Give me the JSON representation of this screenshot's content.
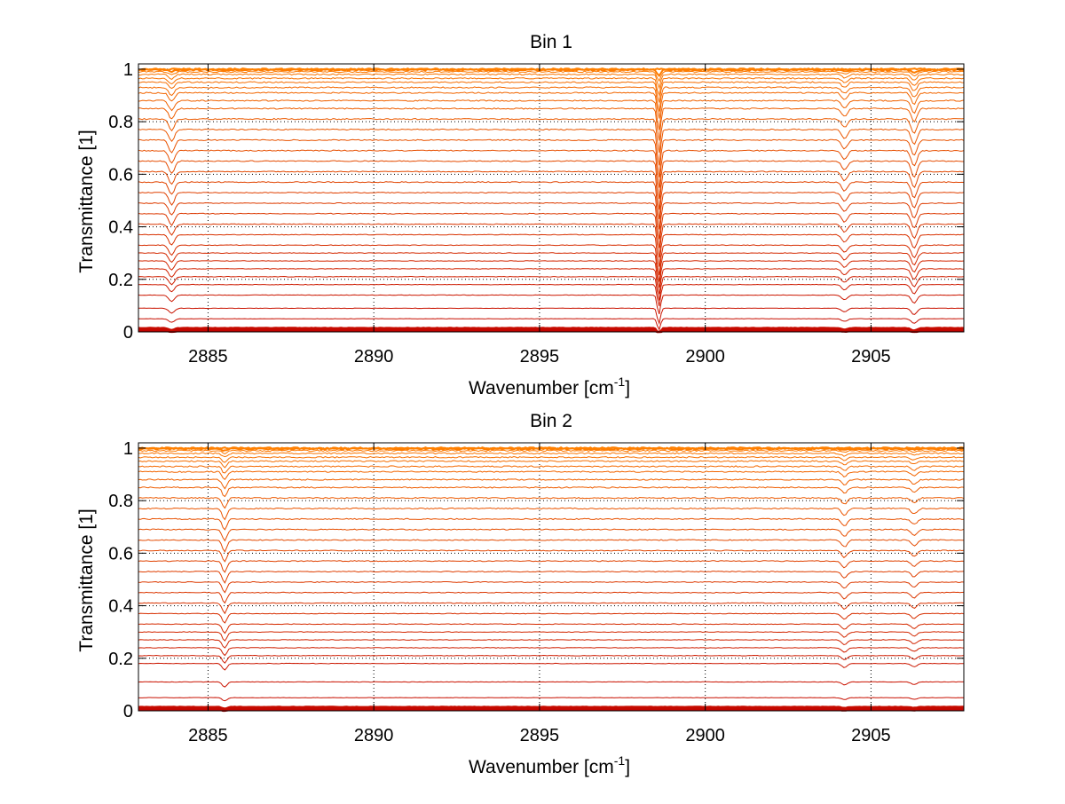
{
  "chart_data": [
    {
      "type": "line",
      "title": "Bin 1",
      "xlabel_main": "Wavenumber [cm",
      "xlabel_sup": "-1",
      "xlabel_end": "]",
      "ylabel": "Transmittance [1]",
      "xlim": [
        2882.9,
        2907.8
      ],
      "ylim": [
        0,
        1.02
      ],
      "xticks": [
        2885,
        2890,
        2895,
        2900,
        2905
      ],
      "xtick_labels": [
        "2885",
        "2890",
        "2895",
        "2900",
        "2905"
      ],
      "yticks": [
        0,
        0.2,
        0.4,
        0.6,
        0.8,
        1
      ],
      "ytick_labels": [
        "0",
        "0.2",
        "0.4",
        "0.6",
        "0.8",
        "1"
      ],
      "grid": "dotted",
      "color_low": "#c00000",
      "color_high": "#ff8000",
      "absorption_lines": [
        {
          "x": 2883.9,
          "width": 0.12,
          "strength": 0.055
        },
        {
          "x": 2898.6,
          "width": 0.07,
          "strength": 0.17
        },
        {
          "x": 2904.2,
          "width": 0.12,
          "strength": 0.04
        },
        {
          "x": 2906.3,
          "width": 0.12,
          "strength": 0.07
        }
      ],
      "series_levels": [
        0.003,
        0.006,
        0.01,
        0.015,
        0.05,
        0.09,
        0.14,
        0.18,
        0.21,
        0.24,
        0.27,
        0.3,
        0.33,
        0.37,
        0.41,
        0.45,
        0.49,
        0.53,
        0.57,
        0.61,
        0.65,
        0.69,
        0.73,
        0.77,
        0.81,
        0.85,
        0.88,
        0.91,
        0.93,
        0.95,
        0.965,
        0.98,
        0.99,
        0.997,
        1.0
      ]
    },
    {
      "type": "line",
      "title": "Bin 2",
      "xlabel_main": "Wavenumber [cm",
      "xlabel_sup": "-1",
      "xlabel_end": "]",
      "ylabel": "Transmittance [1]",
      "xlim": [
        2882.9,
        2907.8
      ],
      "ylim": [
        0,
        1.02
      ],
      "xticks": [
        2885,
        2890,
        2895,
        2900,
        2905
      ],
      "xtick_labels": [
        "2885",
        "2890",
        "2895",
        "2900",
        "2905"
      ],
      "yticks": [
        0,
        0.2,
        0.4,
        0.6,
        0.8,
        1
      ],
      "ytick_labels": [
        "0",
        "0.2",
        "0.4",
        "0.6",
        "0.8",
        "1"
      ],
      "grid": "dotted",
      "color_low": "#c00000",
      "color_high": "#ff8000",
      "absorption_lines": [
        {
          "x": 2885.5,
          "width": 0.1,
          "strength": 0.05
        },
        {
          "x": 2904.2,
          "width": 0.12,
          "strength": 0.03
        },
        {
          "x": 2906.3,
          "width": 0.12,
          "strength": 0.025
        }
      ],
      "series_levels": [
        0.003,
        0.006,
        0.01,
        0.015,
        0.05,
        0.11,
        0.18,
        0.21,
        0.24,
        0.27,
        0.3,
        0.33,
        0.37,
        0.41,
        0.45,
        0.49,
        0.53,
        0.57,
        0.61,
        0.65,
        0.69,
        0.73,
        0.77,
        0.81,
        0.85,
        0.88,
        0.91,
        0.93,
        0.95,
        0.965,
        0.98,
        0.99,
        0.997,
        1.0
      ]
    }
  ]
}
